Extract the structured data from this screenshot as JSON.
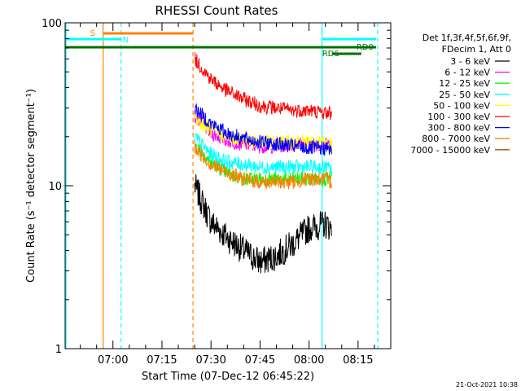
{
  "chart_data": {
    "type": "line",
    "title": "RHESSI Count Rates",
    "xlabel": "Start Time (07-Dec-12 06:45:22)",
    "ylabel": "Count Rate (s⁻¹ detector segment⁻¹)",
    "yscale": "log",
    "ylim": [
      1,
      100
    ],
    "xlim": [
      "06:45:22",
      "08:25:00"
    ],
    "x_ticks": [
      "07:00",
      "07:15",
      "07:30",
      "07:45",
      "08:00",
      "08:15"
    ],
    "y_ticks": [
      "1",
      "10",
      "100"
    ],
    "grid": false,
    "legend_position": "right",
    "legend_header": [
      "Det 1f,3f,4f,5f,6f,9f,",
      "FDecim 1, Att 0"
    ],
    "series": [
      {
        "name": "3 - 6 keV",
        "color": "#000000",
        "x": [
          "07:25",
          "07:30",
          "07:35",
          "07:40",
          "07:45",
          "07:50",
          "07:55",
          "08:00",
          "08:05",
          "08:07"
        ],
        "values": [
          10.0,
          6.0,
          4.8,
          4.0,
          3.4,
          3.7,
          4.4,
          5.5,
          5.8,
          5.5
        ]
      },
      {
        "name": "6 - 12 keV",
        "color": "#ff00ff",
        "x": [
          "07:25",
          "07:30",
          "07:35",
          "07:40",
          "07:45",
          "07:50",
          "07:55",
          "08:00",
          "08:05",
          "08:07"
        ],
        "values": [
          27,
          21,
          19,
          18,
          17.5,
          17.5,
          18,
          18,
          18,
          17.5
        ]
      },
      {
        "name": "12 - 25 keV",
        "color": "#00ff00",
        "x": [
          "07:25",
          "07:30",
          "07:35",
          "07:40",
          "07:45",
          "07:50",
          "07:55",
          "08:00",
          "08:05",
          "08:07"
        ],
        "values": [
          18,
          14,
          12,
          11,
          11,
          11,
          11,
          11,
          11,
          11
        ]
      },
      {
        "name": "25 - 50 keV",
        "color": "#00ffff",
        "x": [
          "07:25",
          "07:30",
          "07:35",
          "07:40",
          "07:45",
          "07:50",
          "07:55",
          "08:00",
          "08:05",
          "08:07"
        ],
        "values": [
          20,
          15.5,
          14,
          13.5,
          13,
          13,
          13,
          13,
          13,
          12.5
        ]
      },
      {
        "name": "50 - 100 keV",
        "color": "#ffff00",
        "x": [
          "07:25",
          "07:30",
          "07:35",
          "07:40",
          "07:45",
          "07:50",
          "07:55",
          "08:00",
          "08:05",
          "08:07"
        ],
        "values": [
          26,
          22,
          20,
          19,
          18.5,
          18.5,
          18.5,
          18.5,
          18.5,
          18
        ]
      },
      {
        "name": "100 - 300 keV",
        "color": "#ff0000",
        "x": [
          "07:25",
          "07:30",
          "07:35",
          "07:40",
          "07:45",
          "07:50",
          "07:55",
          "08:00",
          "08:05",
          "08:07"
        ],
        "values": [
          60,
          45,
          38,
          34,
          31,
          30,
          29,
          29,
          28,
          28
        ]
      },
      {
        "name": "300 - 800 keV",
        "color": "#0000ff",
        "x": [
          "07:25",
          "07:30",
          "07:35",
          "07:40",
          "07:45",
          "07:50",
          "07:55",
          "08:00",
          "08:05",
          "08:07"
        ],
        "values": [
          30,
          24,
          21,
          19.5,
          18.5,
          18,
          17.5,
          17,
          17,
          16.5
        ]
      },
      {
        "name": "800 - 7000 keV",
        "color": "#ff8000",
        "x": [
          "07:25",
          "07:30",
          "07:35",
          "07:40",
          "07:45",
          "07:50",
          "07:55",
          "08:00",
          "08:05",
          "08:07"
        ],
        "values": [
          17,
          13.5,
          12,
          11,
          10.5,
          10.5,
          10.5,
          11,
          11,
          10.5
        ]
      },
      {
        "name": "7000 - 15000 keV",
        "color": "#a05000",
        "x": [],
        "values": []
      }
    ],
    "annotations": [
      {
        "text": "S",
        "color": "#ff8000"
      },
      {
        "text": "N",
        "color": "#00ffff"
      },
      {
        "text": "RD0",
        "color": "#007000"
      },
      {
        "text": "RD6",
        "color": "#007000"
      }
    ],
    "footer_date": "21-Oct-2021 10:38"
  }
}
